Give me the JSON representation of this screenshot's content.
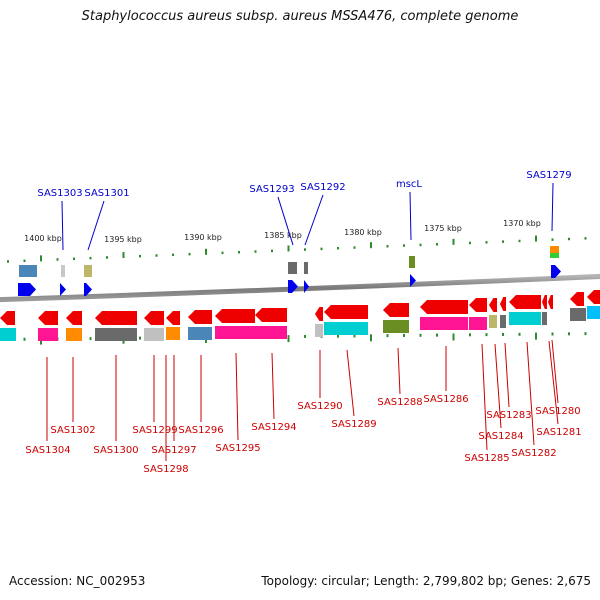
{
  "title": "Staphylococcus aureus subsp. aureus MSSA476, complete genome",
  "footer": {
    "accession": "Accession: NC_002953",
    "topology": "Topology: circular; Length: 2,799,802 bp; Genes: 2,675"
  },
  "colors": {
    "backbone": "#8c8c8c",
    "tick": "#2e8b2e",
    "strand_arrow": "#ee0000",
    "top_label": "#0000cc",
    "bottom_label": "#cc0000",
    "cds_blue": "#0000ee"
  },
  "scale_labels": [
    "1400 kbp",
    "1395 kbp",
    "1390 kbp",
    "1385 kbp",
    "1380 kbp",
    "1375 kbp",
    "1370 kbp"
  ],
  "top_genes": [
    {
      "label": "SAS1303",
      "fill": "#0000ee"
    },
    {
      "label": "SAS1301",
      "fill": "#0000ee"
    },
    {
      "label": "SAS1293",
      "fill": "#0000ee"
    },
    {
      "label": "SAS1292",
      "fill": "#0000ee"
    },
    {
      "label": "mscL",
      "fill": "#0000ee"
    },
    {
      "label": "SAS1279",
      "fill": "#0000ee"
    }
  ],
  "top_features": [
    {
      "name": "top-feature-1",
      "fill": "#4a86b8"
    },
    {
      "name": "top-feature-2",
      "fill": "#c8c8c8"
    },
    {
      "name": "top-feature-3",
      "fill": "#bdb76b"
    },
    {
      "name": "top-feature-4",
      "fill": "#6a6a6a"
    },
    {
      "name": "top-feature-5",
      "fill": "#6a6a6a"
    },
    {
      "name": "top-feature-6",
      "fill": "#6b8e23"
    },
    {
      "name": "top-feature-7",
      "fill": "#ff8c00"
    },
    {
      "name": "top-feature-8",
      "fill": "#32cd32"
    }
  ],
  "bottom_genes": [
    {
      "label": "SAS1304",
      "fill": "#ff1493"
    },
    {
      "label": "SAS1302",
      "fill": "#ff8c00"
    },
    {
      "label": "SAS1300",
      "fill": "#6a6a6a"
    },
    {
      "label": "SAS1299",
      "fill": "#c0c0c0"
    },
    {
      "label": "SAS1298",
      "fill": "#c0c0c0"
    },
    {
      "label": "SAS1297",
      "fill": "#ff8c00"
    },
    {
      "label": "SAS1296",
      "fill": "#4a86b8"
    },
    {
      "label": "SAS1295",
      "fill": "#ff1493"
    },
    {
      "label": "SAS1294",
      "fill": "#ff1493"
    },
    {
      "label": "SAS1290",
      "fill": "#c0c0c0"
    },
    {
      "label": "SAS1289",
      "fill": "#00ced1"
    },
    {
      "label": "SAS1288",
      "fill": "#6b8e23"
    },
    {
      "label": "SAS1286",
      "fill": "#ff1493"
    },
    {
      "label": "SAS1285",
      "fill": "#bdb76b"
    },
    {
      "label": "SAS1284",
      "fill": "#ff1493"
    },
    {
      "label": "SAS1283",
      "fill": "#6a6a6a"
    },
    {
      "label": "SAS1282",
      "fill": "#00ced1"
    },
    {
      "label": "SAS1281",
      "fill": "#6a6a6a"
    },
    {
      "label": "SAS1280",
      "fill": "#00bfff"
    }
  ]
}
